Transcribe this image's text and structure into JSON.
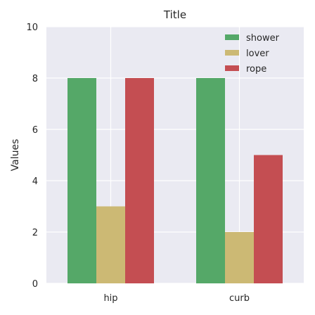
{
  "chart_data": {
    "type": "bar",
    "title": "Title",
    "xlabel": "",
    "ylabel": "Values",
    "categories": [
      "hip",
      "curb"
    ],
    "series": [
      {
        "name": "shower",
        "color": "#55a868",
        "values": [
          8,
          8
        ]
      },
      {
        "name": "lover",
        "color": "#ccb974",
        "values": [
          3,
          2
        ]
      },
      {
        "name": "rope",
        "color": "#c44e52",
        "values": [
          8,
          5
        ]
      }
    ],
    "ylim": [
      0,
      10
    ],
    "yticks": [
      0,
      2,
      4,
      6,
      8,
      10
    ],
    "grid": true,
    "legend_position": "top-right",
    "plot_background": "#eaeaf2",
    "grid_color": "#ffffff"
  }
}
